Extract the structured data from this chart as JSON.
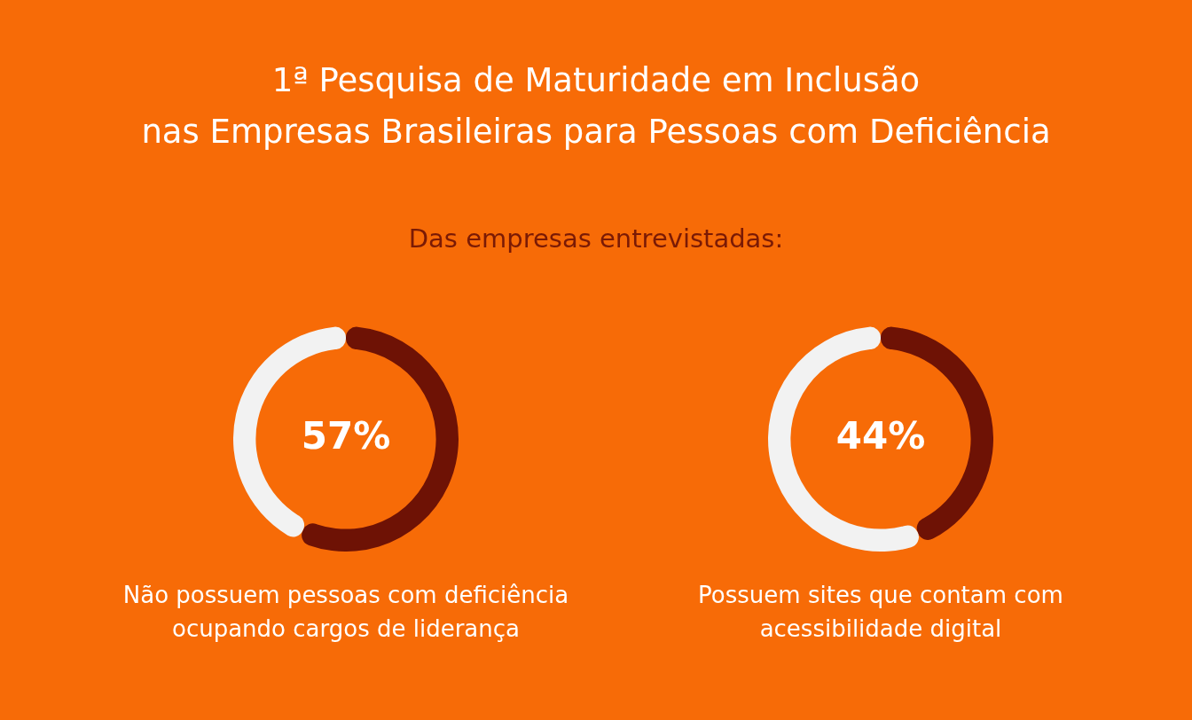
{
  "chart_data": [
    {
      "type": "donut",
      "title": "1ª Pesquisa de Maturidade em Inclusão\nnas Empresas Brasileiras para Pessoas com Deficiência",
      "subtitle": "Das empresas entrevistadas:",
      "categories": [
        null,
        null
      ],
      "values": [
        57,
        43
      ],
      "colors": [
        "#6e1205",
        "#f2f2f2"
      ],
      "value_labels": [
        "57%",
        null
      ],
      "annotations": [
        "Não possuem pessoas com deficiência\nocupando cargos de liderança"
      ]
    },
    {
      "type": "donut",
      "categories": [
        null,
        null
      ],
      "values": [
        44,
        56
      ],
      "colors": [
        "#6e1205",
        "#f2f2f2"
      ],
      "value_labels": [
        "44%",
        null
      ],
      "annotations": [
        "Possuem sites que contam com\nacessibilidade digital"
      ]
    }
  ]
}
